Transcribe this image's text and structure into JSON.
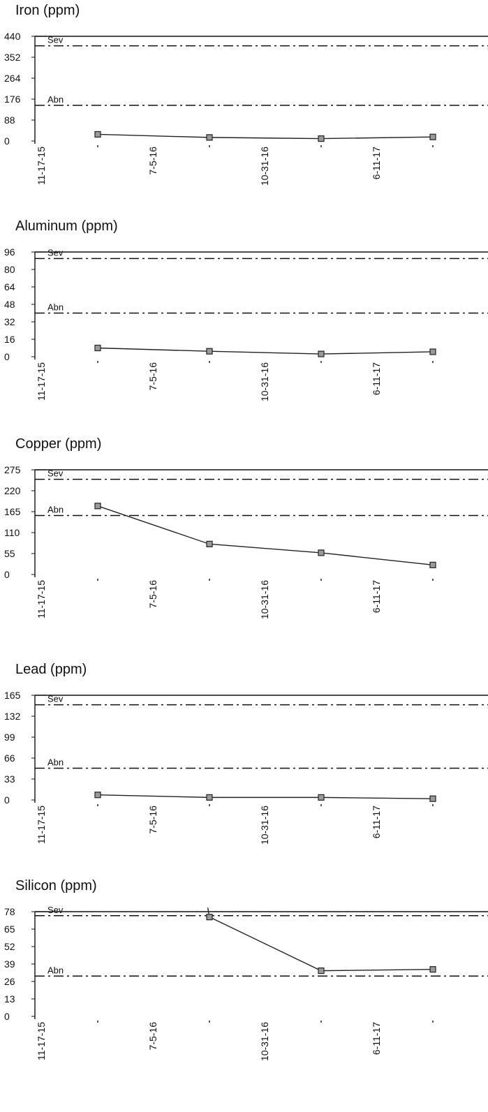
{
  "chart_data": [
    {
      "type": "line",
      "title": "Iron (ppm)",
      "yticks": [
        "440",
        "352",
        "264",
        "176",
        "88",
        "0"
      ],
      "ylim": [
        0,
        440
      ],
      "x_tick_labels": [
        "11-17-15",
        "7-5-16",
        "10-31-16",
        "6-11-17"
      ],
      "series": [
        {
          "points": [
            {
              "slot": 1,
              "value": 28
            },
            {
              "slot": 3,
              "value": 15
            },
            {
              "slot": 5,
              "value": 10
            },
            {
              "slot": 7,
              "value": 17
            }
          ]
        }
      ],
      "limits": [
        {
          "label": "Sev",
          "value": 400
        },
        {
          "label": "Abn",
          "value": 150
        }
      ]
    },
    {
      "type": "line",
      "title": "Aluminum (ppm)",
      "yticks": [
        "96",
        "80",
        "64",
        "48",
        "32",
        "16",
        "0"
      ],
      "ylim": [
        0,
        96
      ],
      "x_tick_labels": [
        "11-17-15",
        "7-5-16",
        "10-31-16",
        "6-11-17"
      ],
      "series": [
        {
          "points": [
            {
              "slot": 1,
              "value": 8
            },
            {
              "slot": 3,
              "value": 5
            },
            {
              "slot": 5,
              "value": 2.5
            },
            {
              "slot": 7,
              "value": 4.5
            }
          ]
        }
      ],
      "limits": [
        {
          "label": "Sev",
          "value": 90
        },
        {
          "label": "Abn",
          "value": 40
        }
      ]
    },
    {
      "type": "line",
      "title": "Copper (ppm)",
      "yticks": [
        "275",
        "220",
        "165",
        "110",
        "55",
        "0"
      ],
      "ylim": [
        0,
        275
      ],
      "x_tick_labels": [
        "11-17-15",
        "7-5-16",
        "10-31-16",
        "6-11-17"
      ],
      "series": [
        {
          "points": [
            {
              "slot": 1,
              "value": 180
            },
            {
              "slot": 3,
              "value": 80
            },
            {
              "slot": 5,
              "value": 57
            },
            {
              "slot": 7,
              "value": 25
            }
          ]
        }
      ],
      "limits": [
        {
          "label": "Sev",
          "value": 250
        },
        {
          "label": "Abn",
          "value": 155
        }
      ]
    },
    {
      "type": "line",
      "title": "Lead (ppm)",
      "yticks": [
        "165",
        "132",
        "99",
        "66",
        "33",
        "0"
      ],
      "ylim": [
        0,
        165
      ],
      "x_tick_labels": [
        "11-17-15",
        "7-5-16",
        "10-31-16",
        "6-11-17"
      ],
      "series": [
        {
          "points": [
            {
              "slot": 1,
              "value": 8
            },
            {
              "slot": 3,
              "value": 4
            },
            {
              "slot": 5,
              "value": 4
            },
            {
              "slot": 7,
              "value": 2
            }
          ]
        }
      ],
      "limits": [
        {
          "label": "Sev",
          "value": 150
        },
        {
          "label": "Abn",
          "value": 50
        }
      ]
    },
    {
      "type": "line",
      "title": "Silicon (ppm)",
      "yticks": [
        "78",
        "65",
        "52",
        "39",
        "26",
        "13",
        "0"
      ],
      "ylim": [
        0,
        78
      ],
      "x_tick_labels": [
        "11-17-15",
        "7-5-16",
        "10-31-16",
        "6-11-17"
      ],
      "series": [
        {
          "points": [
            {
              "slot": 2.97,
              "value": 81
            },
            {
              "slot": 3,
              "value": 74
            },
            {
              "slot": 5,
              "value": 34
            },
            {
              "slot": 7,
              "value": 35
            }
          ]
        }
      ],
      "limits": [
        {
          "label": "Sev",
          "value": 75
        },
        {
          "label": "Abn",
          "value": 30
        }
      ]
    }
  ]
}
